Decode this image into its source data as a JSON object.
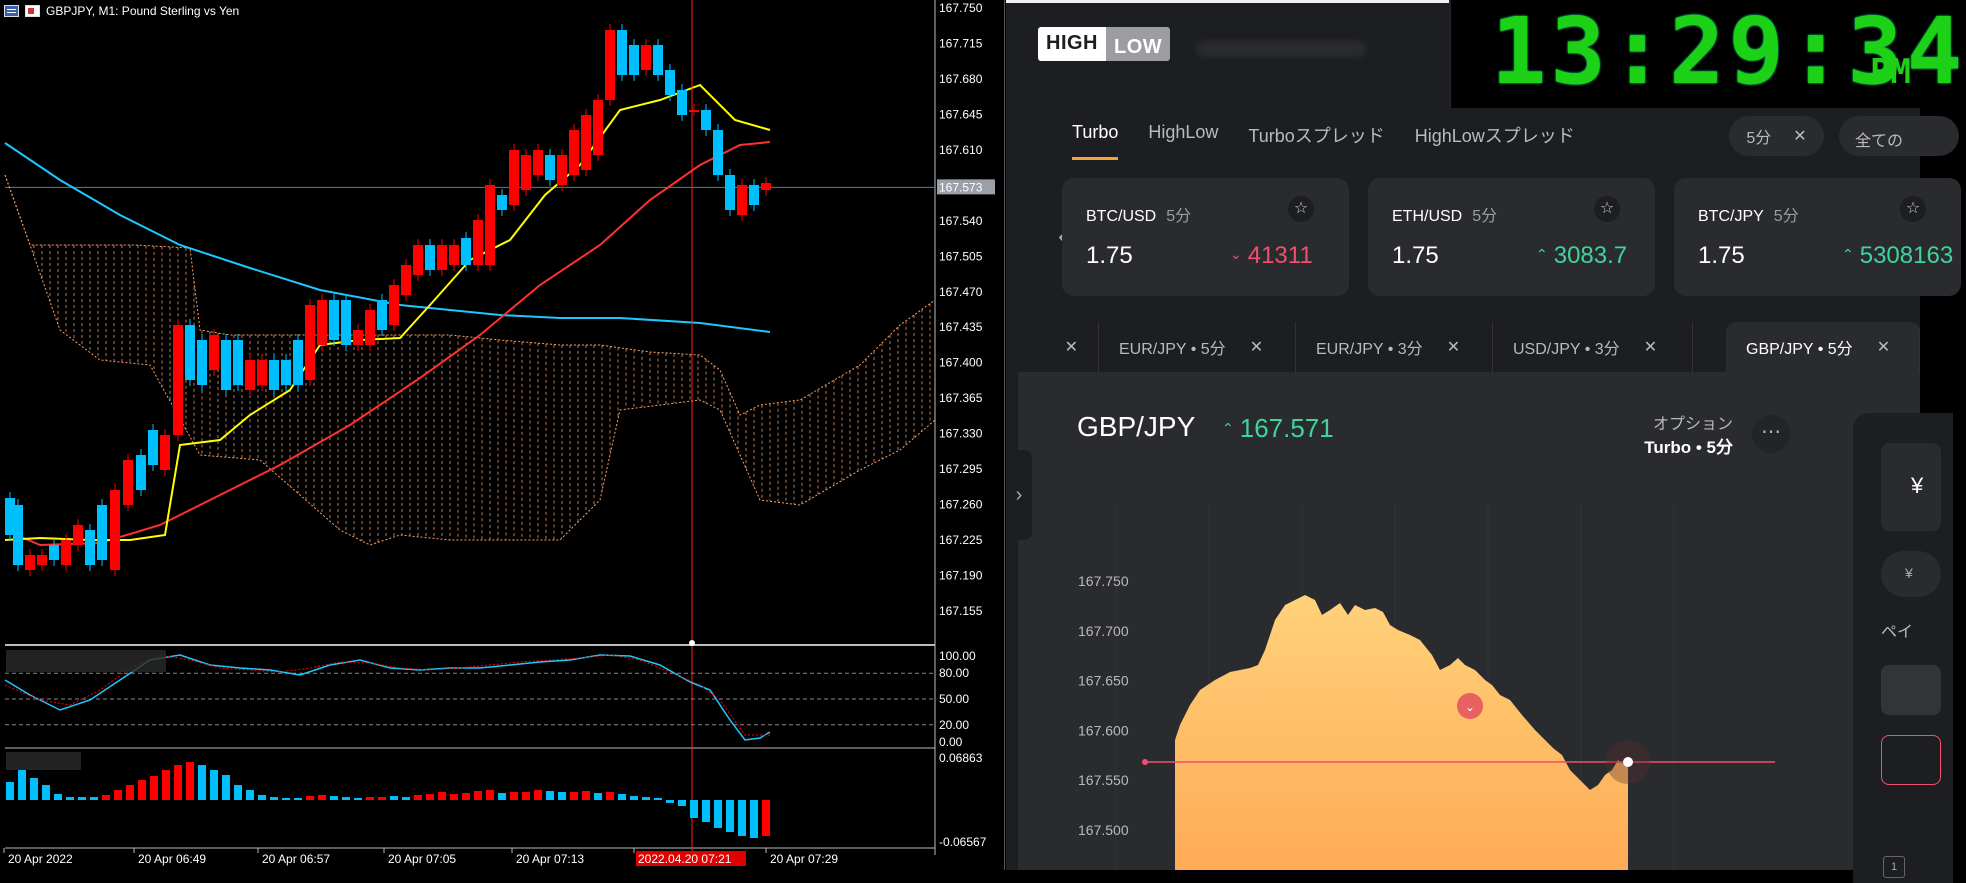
{
  "mt": {
    "title": "GBPJPY, M1:  Pound Sterling vs Yen",
    "price_axis": [
      "167.750",
      "167.715",
      "167.680",
      "167.645",
      "167.610",
      "167.573",
      "167.540",
      "167.505",
      "167.470",
      "167.435",
      "167.400",
      "167.365",
      "167.330",
      "167.295",
      "167.260",
      "167.225",
      "167.190",
      "167.155"
    ],
    "current_price": "167.573",
    "stoch_axis": [
      "100.00",
      "80.00",
      "50.00",
      "20.00",
      "0.00"
    ],
    "macd_axis": [
      "0.06863",
      "-0.06567"
    ],
    "time_axis": [
      "20 Apr 2022",
      "20 Apr 06:49",
      "20 Apr 06:57",
      "20 Apr 07:05",
      "20 Apr 07:13",
      "2022.04.20 07:21",
      "20 Apr 07:29"
    ],
    "colors": {
      "bull": "#00bfff",
      "bear": "#ff0000",
      "fast_ma": "#ffff00",
      "slow_ma": "#ff3030",
      "long_ma": "#1ec8ff",
      "cloud": "#ffa060",
      "grid": "#3a5a80"
    }
  },
  "highlow": {
    "logo_left": "HIGH",
    "logo_right": "LOW",
    "clock": {
      "time": "13:29:34",
      "ampm": "PM"
    },
    "tabs": [
      {
        "label": "Turbo",
        "active": true
      },
      {
        "label": "HighLow",
        "active": false
      },
      {
        "label": "Turboスプレッド",
        "active": false
      },
      {
        "label": "HighLowスプレッド",
        "active": false
      }
    ],
    "filter": {
      "label": "5分",
      "close": "✕"
    },
    "filter_all": "全ての",
    "cards": [
      {
        "pair": "BTC/USD",
        "dur": "5分",
        "payout": "1.75",
        "rate": "41311",
        "dir": "down"
      },
      {
        "pair": "ETH/USD",
        "dur": "5分",
        "payout": "1.75",
        "rate": "3083.7",
        "dir": "up"
      },
      {
        "pair": "BTC/JPY",
        "dur": "5分",
        "payout": "1.75",
        "rate": "5308163",
        "dir": "up"
      }
    ],
    "asset_tabs": [
      {
        "label": "EUR/JPY • 5分",
        "active": false
      },
      {
        "label": "EUR/JPY • 3分",
        "active": false
      },
      {
        "label": "USD/JPY • 3分",
        "active": false
      },
      {
        "label": "GBP/JPY • 5分",
        "active": true
      }
    ],
    "asset": {
      "name": "GBP/JPY",
      "rate": "167.571",
      "option_label": "オプション",
      "option_value": "Turbo • 5分"
    },
    "chart_axis": [
      "167.750",
      "167.700",
      "167.650",
      "167.600",
      "167.550",
      "167.500"
    ],
    "right_panel": {
      "currency": "¥",
      "label": "ペイ",
      "count": "1"
    },
    "colors": {
      "up": "#3ed59b",
      "down": "#f0506e",
      "area_top": "#ffd27a",
      "area_bottom": "#ffaa55"
    }
  }
}
